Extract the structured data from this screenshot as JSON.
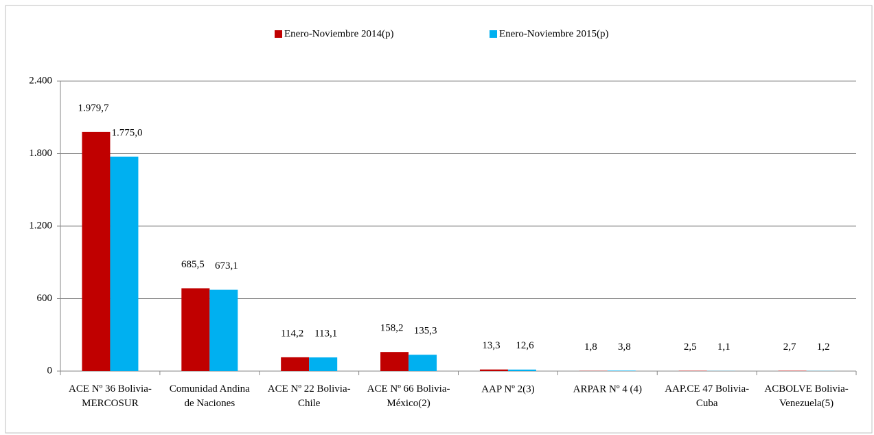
{
  "chart_data": {
    "type": "bar",
    "categories": [
      "ACE Nº 36 Bolivia-\nMERCOSUR",
      "Comunidad Andina\nde Naciones",
      "ACE Nº 22  Bolivia-\nChile",
      "ACE Nº 66  Bolivia-\nMéxico(2)",
      "AAP Nº 2(3)",
      "ARPAR Nº 4 (4)",
      "AAP.CE 47 Bolivia-\nCuba",
      "ACBOLVE Bolivia-\nVenezuela(5)"
    ],
    "series": [
      {
        "name": "Enero-Noviembre 2014(p)",
        "color": "#c00000",
        "values": [
          1979.7,
          685.5,
          114.2,
          158.2,
          13.3,
          1.8,
          2.5,
          2.7
        ],
        "value_labels": [
          "1.979,7",
          "685,5",
          "114,2",
          "158,2",
          "13,3",
          "1,8",
          "2,5",
          "2,7"
        ]
      },
      {
        "name": "Enero-Noviembre 2015(p)",
        "color": "#00b0f0",
        "values": [
          1775.0,
          673.1,
          113.1,
          135.3,
          12.6,
          3.8,
          1.1,
          1.2
        ],
        "value_labels": [
          "1.775,0",
          "673,1",
          "113,1",
          "135,3",
          "12,6",
          "3,8",
          "1,1",
          "1,2"
        ]
      }
    ],
    "ylim": [
      0,
      2400
    ],
    "yticks": [
      0,
      {
        "value": 600,
        "label": "600"
      },
      {
        "value": 1200,
        "label": "1.200"
      },
      {
        "value": 1800,
        "label": "1.800"
      },
      {
        "value": 2400,
        "label": "2.400"
      }
    ],
    "grid": true,
    "legend": "top"
  }
}
